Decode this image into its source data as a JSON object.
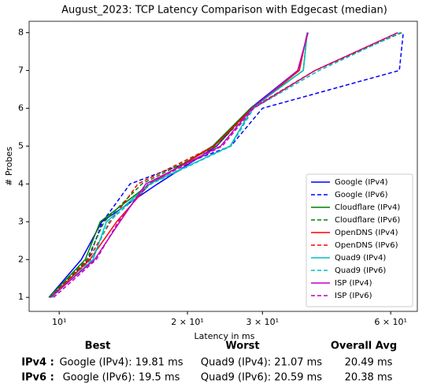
{
  "chart_data": {
    "type": "line",
    "title": "August_2023: TCP Latency Comparison with Edgecast (median)",
    "xlabel": "Latency in ms",
    "ylabel": "# Probes",
    "xscale": "log",
    "xlim": [
      8.5,
      69.3
    ],
    "ylim": [
      0.63,
      8.3
    ],
    "xticks": [
      {
        "value": 10,
        "label": "10¹"
      },
      {
        "value": 20,
        "label": "2 × 10¹"
      },
      {
        "value": 30,
        "label": "3 × 10¹"
      },
      {
        "value": 60,
        "label": "6 × 10¹"
      }
    ],
    "yticks": [
      1,
      2,
      3,
      4,
      5,
      6,
      7,
      8
    ],
    "legend": "lower right",
    "series": [
      {
        "name": "Google (IPv4)",
        "color": "#0000ff",
        "linestyle": "solid",
        "x": [
          9.46,
          11.27,
          12.59,
          17.02,
          23.43,
          28.13,
          36.32,
          38.38
        ],
        "values": [
          1,
          2,
          3,
          4,
          5,
          6,
          7,
          8
        ]
      },
      {
        "name": "Google (IPv6)",
        "color": "#0000ff",
        "linestyle": "dashed",
        "x": [
          9.5,
          11.71,
          12.64,
          14.67,
          25.29,
          30.0,
          62.88,
          64.23
        ],
        "values": [
          1,
          2,
          3,
          4,
          5,
          6,
          7,
          8
        ]
      },
      {
        "name": "Cloudflare (IPv4)",
        "color": "#008000",
        "linestyle": "solid",
        "x": [
          9.46,
          11.51,
          12.48,
          16.31,
          22.93,
          28.13,
          37.41,
          38.22
        ],
        "values": [
          1,
          2,
          3,
          4,
          5,
          6,
          7,
          8
        ]
      },
      {
        "name": "Cloudflare (IPv6)",
        "color": "#008000",
        "linestyle": "dashed",
        "x": [
          9.54,
          11.61,
          12.75,
          15.63,
          23.43,
          28.37,
          39.87,
          63.69
        ],
        "values": [
          1,
          2,
          3,
          4,
          5,
          6,
          7,
          8
        ]
      },
      {
        "name": "OpenDNS (IPv4)",
        "color": "#ff0000",
        "linestyle": "solid",
        "x": [
          9.54,
          11.81,
          13.64,
          16.31,
          23.13,
          28.37,
          36.63,
          38.22
        ],
        "values": [
          1,
          2,
          3,
          4,
          5,
          6,
          7,
          8
        ]
      },
      {
        "name": "OpenDNS (IPv6)",
        "color": "#ff0000",
        "linestyle": "dashed",
        "x": [
          9.58,
          11.71,
          13.19,
          15.3,
          23.13,
          28.37,
          39.87,
          62.35
        ],
        "values": [
          1,
          2,
          3,
          4,
          5,
          6,
          7,
          8
        ]
      },
      {
        "name": "Quad9 (IPv4)",
        "color": "#00bfbf",
        "linestyle": "solid",
        "x": [
          9.58,
          12.01,
          12.91,
          16.31,
          25.19,
          28.37,
          37.41,
          38.22
        ],
        "values": [
          1,
          2,
          3,
          4,
          5,
          6,
          7,
          8
        ]
      },
      {
        "name": "Quad9 (IPv6)",
        "color": "#00bfbf",
        "linestyle": "dashed",
        "x": [
          9.62,
          11.91,
          13.08,
          16.45,
          25.29,
          28.61,
          40.74,
          63.15
        ],
        "values": [
          1,
          2,
          3,
          4,
          5,
          6,
          7,
          8
        ]
      },
      {
        "name": "ISP (IPv4)",
        "color": "#bf00bf",
        "linestyle": "solid",
        "x": [
          9.54,
          12.11,
          13.88,
          15.97,
          23.93,
          28.37,
          36.32,
          38.38
        ],
        "values": [
          1,
          2,
          3,
          4,
          5,
          6,
          7,
          8
        ]
      },
      {
        "name": "ISP (IPv6)",
        "color": "#bf00bf",
        "linestyle": "dashed",
        "x": [
          9.7,
          12.22,
          13.76,
          16.18,
          24.14,
          28.61,
          39.87,
          62.35
        ],
        "values": [
          1,
          2,
          3,
          4,
          5,
          6,
          7,
          8
        ]
      }
    ]
  },
  "summary": {
    "headers": [
      "Best",
      "Worst",
      "Overall Avg"
    ],
    "rows": [
      [
        "IPv4 :",
        "Google (IPv4): 19.81 ms",
        "Quad9 (IPv4): 21.07 ms",
        "20.49 ms"
      ],
      [
        "IPv6 :",
        "Google (IPv6): 19.5 ms",
        "Quad9 (IPv6): 20.59 ms",
        "20.38 ms"
      ]
    ]
  }
}
